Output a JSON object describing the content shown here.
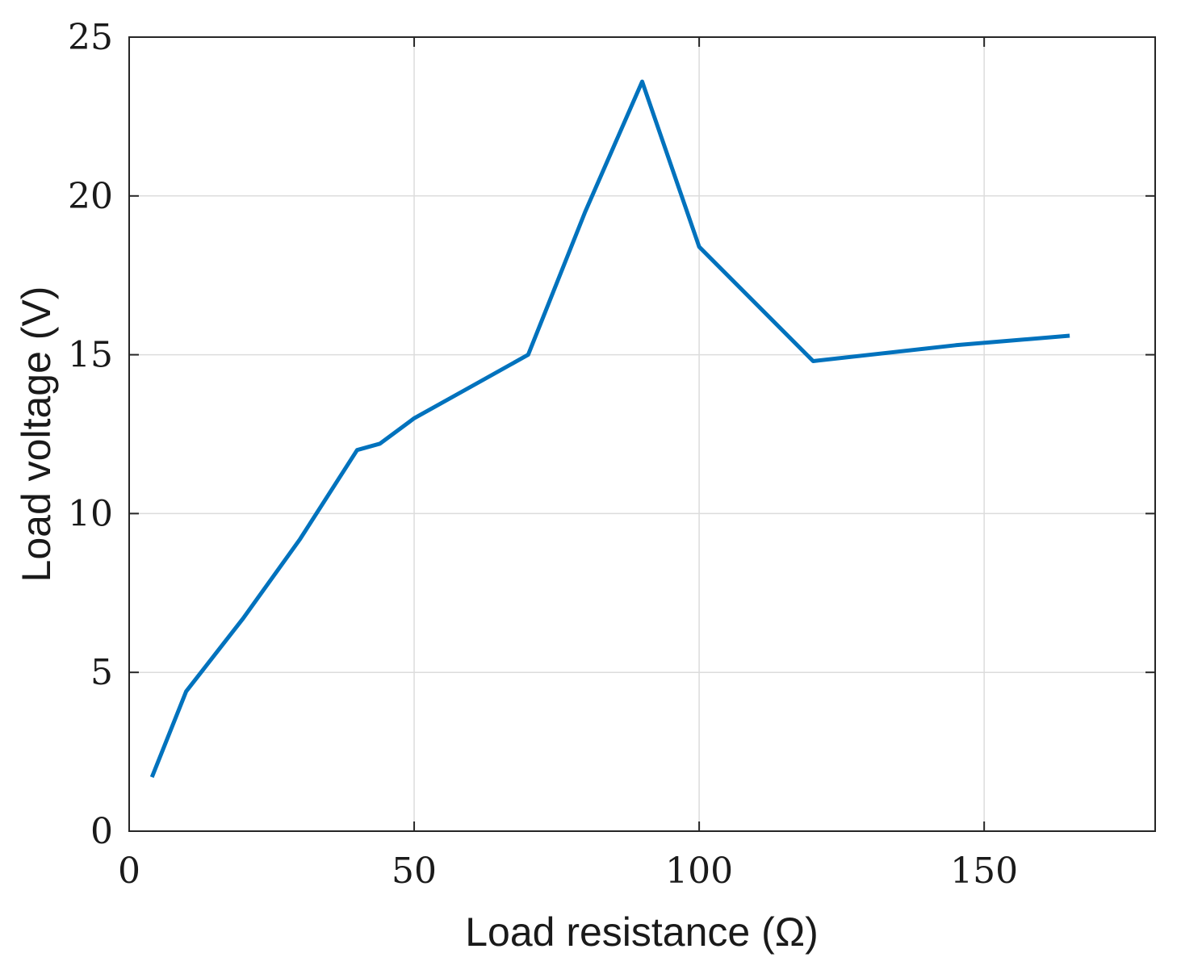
{
  "chart_data": {
    "type": "line",
    "xlabel": "Load resistance (Ω)",
    "ylabel": "Load voltage (V)",
    "xlim": [
      0,
      180
    ],
    "ylim": [
      0,
      25
    ],
    "xticks": [
      0,
      50,
      100,
      150
    ],
    "yticks": [
      0,
      5,
      10,
      15,
      20,
      25
    ],
    "grid": true,
    "series": [
      {
        "color": "#0072BD",
        "x": [
          4,
          10,
          20,
          30,
          40,
          44,
          50,
          60,
          70,
          80,
          90,
          100,
          120,
          145,
          165
        ],
        "y": [
          1.7,
          4.4,
          6.7,
          9.2,
          12.0,
          12.2,
          13.0,
          14.0,
          15.0,
          19.5,
          23.6,
          18.4,
          14.8,
          15.3,
          15.6
        ]
      }
    ]
  }
}
